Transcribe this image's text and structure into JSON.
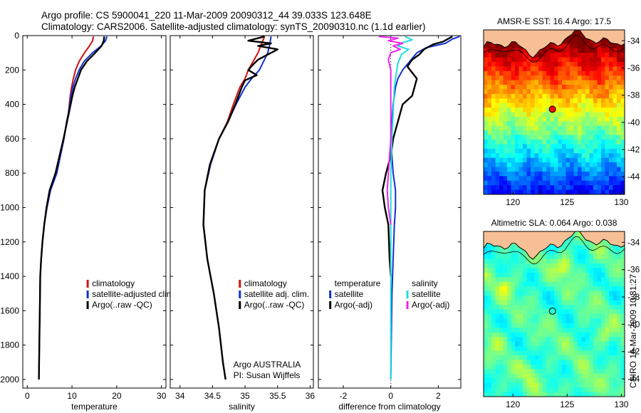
{
  "header": {
    "line1": "Argo profile: CS 5900041_220 11-Mar-2009 20090312_44 39.033S 123.648E",
    "line2": "Climatology: CARS2006. Satellite-adjusted climatology: synTS_20090310.nc (1.1d earlier)"
  },
  "side_label": "CSIRO 16-Mar-2009 10:31:27",
  "colors": {
    "climatology": "#d01010",
    "satellite": "#1030d0",
    "argo": "#000000",
    "sal_satellite": "#22dddd",
    "sal_argo": "#ee22ee",
    "land": "#f7bf96",
    "coast": "#000000"
  },
  "chart_data": [
    {
      "id": "temperature",
      "type": "line",
      "xlabel": "temperature",
      "ylabel": "",
      "xlim": [
        -1,
        31
      ],
      "ylim": [
        2050,
        0
      ],
      "xticks": [
        0,
        10,
        20,
        30
      ],
      "xtick_labels": [
        "0",
        "10",
        "20",
        "30"
      ],
      "yticks": [
        0,
        200,
        400,
        600,
        800,
        1000,
        1200,
        1400,
        1600,
        1800,
        2000
      ],
      "ytick_labels": [
        "0",
        "200",
        "400",
        "600",
        "800",
        "1000",
        "1200",
        "1400",
        "1600",
        "1800",
        "2000"
      ],
      "legend": [
        "climatology",
        "satellite-adjusted climatology",
        "Argo(..raw -QC)"
      ],
      "series": [
        {
          "name": "climatology",
          "color_key": "climatology",
          "x": [
            14.8,
            14.6,
            13.9,
            12.8,
            11.6,
            10.8,
            10.3,
            9.9,
            9.6,
            9.4,
            9.2,
            8.8,
            8.2,
            6.6,
            5.2,
            4.4,
            3.8,
            3.4,
            3.1,
            2.9,
            2.8,
            2.7,
            2.6
          ],
          "y": [
            5,
            30,
            60,
            100,
            150,
            200,
            250,
            300,
            350,
            400,
            450,
            500,
            600,
            800,
            900,
            1000,
            1100,
            1200,
            1300,
            1400,
            1600,
            1800,
            2000
          ]
        },
        {
          "name": "satellite-adjusted climatology",
          "color_key": "satellite",
          "x": [
            17.8,
            17.5,
            16.5,
            14.6,
            12.7,
            11.6,
            10.8,
            10.2,
            9.8,
            9.5,
            9.2,
            8.8,
            8.2,
            6.6,
            5.2,
            4.4,
            3.8,
            3.4,
            3.1,
            2.9,
            2.8,
            2.7,
            2.6
          ],
          "y": [
            5,
            30,
            60,
            100,
            150,
            200,
            250,
            300,
            350,
            400,
            450,
            500,
            600,
            800,
            900,
            1000,
            1100,
            1200,
            1300,
            1400,
            1600,
            1800,
            2000
          ]
        },
        {
          "name": "Argo(..raw -QC)",
          "color_key": "argo",
          "x": [
            17.2,
            17.1,
            16.6,
            15.2,
            13.3,
            12.0,
            11.3,
            10.6,
            10.1,
            9.7,
            9.3,
            8.9,
            8.1,
            6.3,
            5.0,
            4.3,
            3.8,
            3.4,
            3.1,
            2.9,
            2.8,
            2.7,
            2.6
          ],
          "y": [
            5,
            30,
            60,
            100,
            150,
            200,
            250,
            300,
            350,
            400,
            450,
            500,
            600,
            800,
            900,
            1000,
            1100,
            1200,
            1300,
            1400,
            1600,
            1800,
            2000
          ]
        }
      ]
    },
    {
      "id": "salinity",
      "type": "line",
      "xlabel": "salinity",
      "xlim": [
        33.85,
        36.05
      ],
      "ylim": [
        2050,
        0
      ],
      "xticks": [
        34,
        34.5,
        35,
        35.5,
        36
      ],
      "xtick_labels": [
        "34",
        "34.5",
        "35",
        "35.5",
        "36"
      ],
      "legend": [
        "climatology",
        "satellite adj. clim.",
        "Argo(..raw -QC)"
      ],
      "annotation": [
        "Argo AUSTRALIA",
        "PI: Susan Wijffels"
      ],
      "series": [
        {
          "name": "climatology",
          "color_key": "climatology",
          "x": [
            35.3,
            35.25,
            35.2,
            35.05,
            35.0,
            34.92,
            34.82,
            34.73,
            34.6,
            34.47,
            34.38,
            34.36,
            34.42,
            34.52,
            34.6,
            34.66,
            34.7
          ],
          "y": [
            5,
            50,
            100,
            200,
            250,
            300,
            400,
            500,
            600,
            750,
            900,
            1100,
            1300,
            1500,
            1700,
            1900,
            2000
          ]
        },
        {
          "name": "satellite adj. clim.",
          "color_key": "satellite",
          "x": [
            35.4,
            35.38,
            35.35,
            35.22,
            35.1,
            35.0,
            34.86,
            34.74,
            34.6,
            34.47,
            34.38,
            34.36,
            34.42,
            34.52,
            34.6,
            34.66,
            34.7
          ],
          "y": [
            5,
            50,
            100,
            200,
            250,
            300,
            400,
            500,
            600,
            750,
            900,
            1100,
            1300,
            1500,
            1700,
            1900,
            2000
          ]
        },
        {
          "name": "Argo(..raw -QC)",
          "color_key": "argo",
          "x": [
            35.3,
            35.05,
            35.4,
            35.2,
            35.5,
            35.35,
            35.2,
            35.12,
            35.05,
            35.18,
            35.0,
            34.95,
            34.85,
            34.74,
            34.6,
            34.46,
            34.38,
            34.36,
            34.42,
            34.52,
            34.6,
            34.66,
            34.7
          ],
          "y": [
            5,
            30,
            45,
            60,
            80,
            110,
            140,
            170,
            200,
            230,
            260,
            300,
            400,
            500,
            600,
            750,
            900,
            1100,
            1300,
            1500,
            1700,
            1900,
            2000
          ]
        }
      ]
    },
    {
      "id": "difference",
      "type": "line",
      "xlabel": "difference from climatology",
      "xlim": [
        -3.05,
        2.95
      ],
      "ylim": [
        2050,
        0
      ],
      "xticks": [
        -2,
        0,
        2
      ],
      "xtick_labels": [
        "-2",
        "0",
        "2"
      ],
      "legend_temp": [
        "temperature",
        "satellite",
        "Argo(-adj)"
      ],
      "legend_sal": [
        "salinity",
        "satellite",
        "Argo(-adj)"
      ],
      "series": [
        {
          "name": "temperature satellite",
          "color_key": "satellite",
          "x": [
            2.9,
            2.6,
            2.3,
            1.5,
            1.1,
            0.8,
            0.5,
            0.3,
            0.2,
            0.1,
            0.05,
            0.0,
            0.1,
            0.2,
            0.2,
            0.15,
            0.1,
            0.05,
            0.02,
            0.0
          ],
          "y": [
            5,
            20,
            45,
            70,
            100,
            150,
            200,
            250,
            300,
            400,
            500,
            600,
            800,
            900,
            1000,
            1100,
            1300,
            1500,
            1800,
            2000
          ]
        },
        {
          "name": "temperature Argo(-adj)",
          "color_key": "argo",
          "x": [
            2.6,
            2.4,
            2.2,
            1.8,
            1.4,
            1.2,
            0.9,
            0.7,
            1.1,
            1.0,
            0.9,
            0.5,
            0.3,
            0.1,
            0.0,
            -0.2,
            -0.35,
            -0.25,
            -0.1,
            -0.05,
            0.0
          ],
          "y": [
            5,
            20,
            35,
            50,
            80,
            110,
            140,
            180,
            250,
            300,
            350,
            400,
            500,
            600,
            700,
            800,
            900,
            1000,
            1100,
            1300,
            1400
          ]
        },
        {
          "name": "salinity satellite",
          "color_key": "sal_satellite",
          "x": [
            0.6,
            0.9,
            0.5,
            0.3,
            0.75,
            0.45,
            0.3,
            0.2,
            0.15,
            0.1,
            0.05,
            0.0,
            0.0,
            0.0
          ],
          "y": [
            5,
            25,
            40,
            60,
            80,
            110,
            160,
            250,
            300,
            450,
            600,
            800,
            1400,
            2000
          ]
        },
        {
          "name": "salinity Argo(-adj)",
          "color_key": "sal_argo",
          "x": [
            -0.5,
            0.3,
            -0.1,
            0.5,
            0.1,
            0.4,
            0.0,
            -0.1,
            0.0,
            0.0,
            0.0,
            -0.05,
            -0.15,
            -0.1,
            0.0
          ],
          "y": [
            5,
            15,
            30,
            45,
            60,
            80,
            100,
            140,
            200,
            400,
            600,
            700,
            900,
            1000,
            1100
          ]
        }
      ]
    },
    {
      "id": "sst_map",
      "type": "heatmap",
      "title": "AMSR-E SST: 16.4 Argo: 17.5",
      "xlim": [
        117.3,
        130.3
      ],
      "ylim": [
        -45.3,
        -33.2
      ],
      "xticks": [
        120,
        125,
        130
      ],
      "xtick_labels": [
        "120",
        "125",
        "130"
      ],
      "yticks": [
        -34,
        -36,
        -38,
        -40,
        -42,
        -44
      ],
      "ytick_labels": [
        "-34",
        "-36",
        "-38",
        "-40",
        "-42",
        "-44"
      ],
      "argo_point": [
        123.648,
        -39.033
      ],
      "argo_value": 17.5,
      "satellite_value": 16.4
    },
    {
      "id": "sla_map",
      "type": "heatmap",
      "title": "Altimetric SLA: 0.064 Argo: 0.038",
      "xlim": [
        117.3,
        130.3
      ],
      "ylim": [
        -45.3,
        -33.2
      ],
      "xticks": [
        120,
        125,
        130
      ],
      "xtick_labels": [
        "120",
        "125",
        "130"
      ],
      "yticks": [
        -34,
        -36,
        -38,
        -40,
        -42,
        -44
      ],
      "ytick_labels": [
        "-34",
        "-36",
        "-38",
        "-40",
        "-42",
        "-44"
      ],
      "argo_point": [
        123.648,
        -39.033
      ],
      "argo_value": 0.038,
      "satellite_value": 0.064
    }
  ]
}
